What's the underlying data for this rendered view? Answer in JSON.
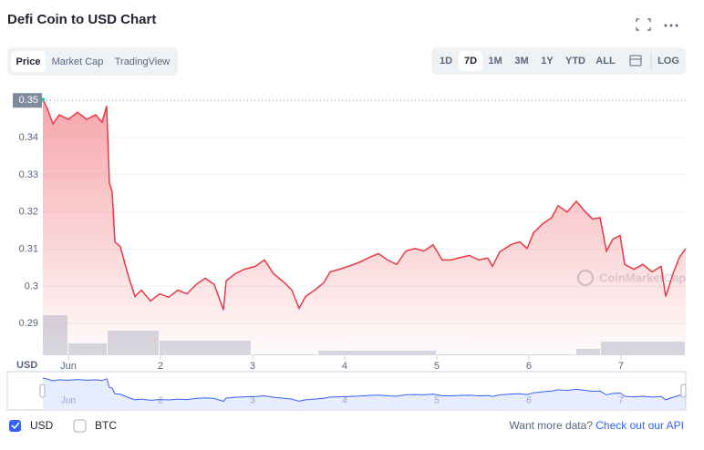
{
  "ui": {
    "tabs": [
      "Price",
      "Market Cap",
      "TradingView"
    ],
    "ranges": [
      "1D",
      "7D",
      "1M",
      "3M",
      "1Y",
      "YTD",
      "ALL"
    ],
    "log": "LOG",
    "legend": [
      "USD",
      "BTC"
    ],
    "more": "Want more data?",
    "api": "Check out our API",
    "watermark": "CoinMarketCap"
  },
  "chart_data": {
    "type": "line",
    "title": "Defi Coin to USD Chart",
    "ylabel": "USD",
    "x": [
      0.723,
      0.772,
      0.832,
      0.901,
      1,
      1.099,
      1.198,
      1.297,
      1.366,
      1.416,
      1.446,
      1.475,
      1.505,
      1.564,
      1.644,
      1.723,
      1.792,
      1.891,
      1.99,
      2.089,
      2.188,
      2.287,
      2.386,
      2.485,
      2.584,
      2.683,
      2.713,
      2.812,
      2.911,
      3.03,
      3.129,
      3.228,
      3.347,
      3.426,
      3.505,
      3.574,
      3.673,
      3.772,
      3.842,
      3.941,
      4.04,
      4.168,
      4.267,
      4.366,
      4.465,
      4.564,
      4.663,
      4.762,
      4.861,
      4.96,
      5.059,
      5.158,
      5.257,
      5.356,
      5.455,
      5.554,
      5.604,
      5.683,
      5.802,
      5.901,
      5.98,
      6.05,
      6.149,
      6.248,
      6.317,
      6.416,
      6.515,
      6.614,
      6.693,
      6.772,
      6.842,
      6.911,
      6.99,
      7.04,
      7.139,
      7.238,
      7.337,
      7.436,
      7.485,
      7.564,
      7.634,
      7.703
    ],
    "series": [
      {
        "name": "USD",
        "color": "#ea3943",
        "values": [
          0.3502,
          0.3478,
          0.3437,
          0.3461,
          0.3449,
          0.3468,
          0.3449,
          0.3461,
          0.3441,
          0.3485,
          0.3278,
          0.3254,
          0.312,
          0.3107,
          0.3034,
          0.2973,
          0.299,
          0.2961,
          0.298,
          0.2971,
          0.299,
          0.298,
          0.3005,
          0.3022,
          0.3005,
          0.2937,
          0.3015,
          0.3034,
          0.3046,
          0.3054,
          0.3071,
          0.3034,
          0.301,
          0.299,
          0.2941,
          0.2973,
          0.299,
          0.301,
          0.3039,
          0.3046,
          0.3054,
          0.3066,
          0.3078,
          0.3088,
          0.3071,
          0.3059,
          0.3095,
          0.3102,
          0.3095,
          0.3112,
          0.3071,
          0.3071,
          0.3078,
          0.3083,
          0.3071,
          0.3076,
          0.3054,
          0.3093,
          0.3112,
          0.312,
          0.3102,
          0.3144,
          0.3168,
          0.3185,
          0.3217,
          0.32,
          0.3229,
          0.32,
          0.3181,
          0.3185,
          0.3095,
          0.3127,
          0.3137,
          0.3059,
          0.3046,
          0.3059,
          0.3039,
          0.3054,
          0.2973,
          0.3034,
          0.3078,
          0.3102
        ]
      }
    ],
    "volume": {
      "bins": [
        0.723,
        1,
        1.426,
        1.99,
        2.99,
        3.713,
        5,
        6.515,
        6.782,
        7.703
      ],
      "values": [
        44,
        13,
        27,
        16,
        1,
        5,
        1,
        7,
        15
      ],
      "ylim": [
        0,
        100
      ]
    },
    "xlim": [
      0.723,
      7.703
    ],
    "ylim": [
      0.2815,
      0.3525
    ],
    "xticks": [
      {
        "value": 1,
        "label": "Jun"
      },
      2,
      3,
      4,
      5,
      6,
      7
    ],
    "yticks": [
      0.29,
      0.3,
      0.31,
      0.32,
      0.33,
      0.34,
      0.35
    ],
    "grid": true
  }
}
